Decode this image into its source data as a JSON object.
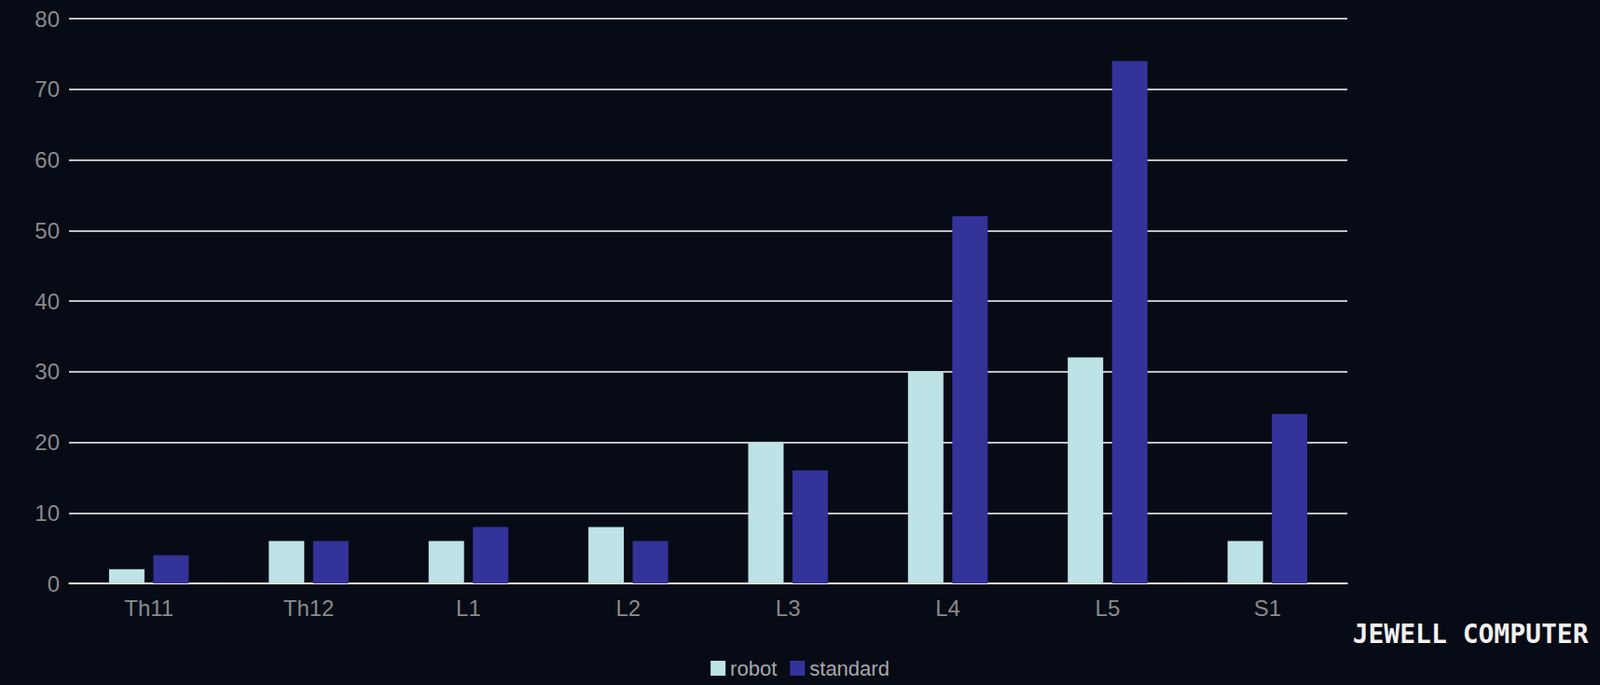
{
  "chart_data": {
    "type": "bar",
    "categories": [
      "Th11",
      "Th12",
      "L1",
      "L2",
      "L3",
      "L4",
      "L5",
      "S1"
    ],
    "series": [
      {
        "name": "robot",
        "color": "#bde3e6",
        "values": [
          2,
          6,
          6,
          8,
          20,
          30,
          32,
          6
        ]
      },
      {
        "name": "standard",
        "color": "#333399",
        "values": [
          4,
          6,
          8,
          6,
          16,
          52,
          74,
          24
        ]
      }
    ],
    "ylim": [
      0,
      80
    ],
    "yticks": [
      0,
      10,
      20,
      30,
      40,
      50,
      60,
      70,
      80
    ],
    "grid": true,
    "legend": "bottom",
    "annotations": [
      "JEWELL COMPUTER"
    ]
  }
}
